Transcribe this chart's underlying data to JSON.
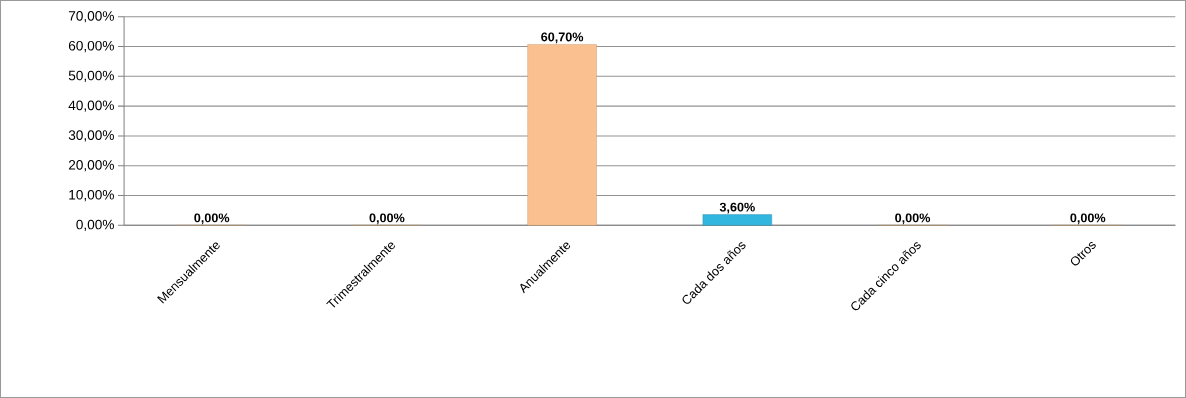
{
  "chart_data": {
    "type": "bar",
    "categories": [
      "Mensualmente",
      "Trimestralmente",
      "Anualmente",
      "Cada dos años",
      "Cada cinco años",
      "Otros"
    ],
    "values": [
      0,
      0,
      60.7,
      3.6,
      0,
      0
    ],
    "colors": [
      "#fac090",
      "#fac090",
      "#fac090",
      "#31b6e0",
      "#fac090",
      "#fac090"
    ],
    "value_labels": [
      "0,00%",
      "0,00%",
      "60,70%",
      "3,60%",
      "0,00%",
      "0,00%"
    ],
    "ylim": [
      0,
      70
    ],
    "yticks": [
      {
        "value": 0,
        "label": "0,00%"
      },
      {
        "value": 10,
        "label": "10,00%"
      },
      {
        "value": 20,
        "label": "20,00%"
      },
      {
        "value": 30,
        "label": "30,00%"
      },
      {
        "value": 40,
        "label": "40,00%"
      },
      {
        "value": 50,
        "label": "50,00%"
      },
      {
        "value": 60,
        "label": "60,00%"
      },
      {
        "value": 70,
        "label": "70,00%"
      }
    ],
    "grid": "y"
  }
}
